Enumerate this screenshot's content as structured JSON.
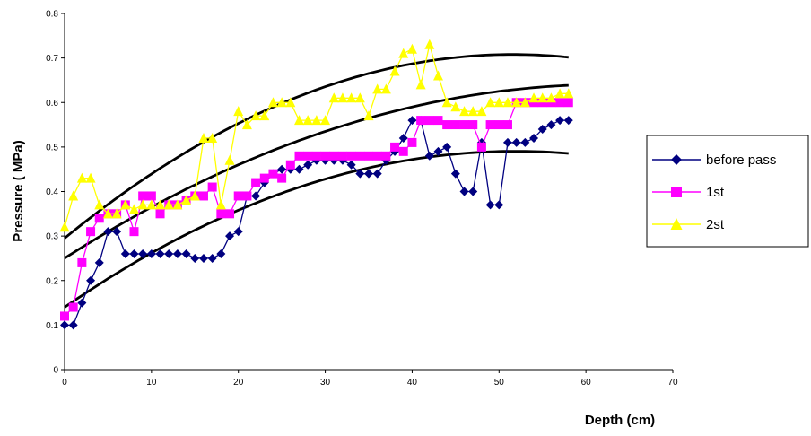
{
  "chart_data": {
    "type": "line",
    "title": "",
    "xlabel": "Depth (cm)",
    "ylabel": "Pressure ( MPa)",
    "xlim": [
      0,
      70
    ],
    "ylim": [
      0,
      0.8
    ],
    "xticks": [
      0,
      10,
      20,
      30,
      40,
      50,
      60,
      70
    ],
    "yticks": [
      0,
      0.1,
      0.2,
      0.3,
      0.4,
      0.5,
      0.6,
      0.7,
      0.8
    ],
    "grid": false,
    "legend_position": "right",
    "x": [
      0,
      1,
      2,
      3,
      4,
      5,
      6,
      7,
      8,
      9,
      10,
      11,
      12,
      13,
      14,
      15,
      16,
      17,
      18,
      19,
      20,
      21,
      22,
      23,
      24,
      25,
      26,
      27,
      28,
      29,
      30,
      31,
      32,
      33,
      34,
      35,
      36,
      37,
      38,
      39,
      40,
      41,
      42,
      43,
      44,
      45,
      46,
      47,
      48,
      49,
      50,
      51,
      52,
      53,
      54,
      55,
      56,
      57,
      58
    ],
    "series": [
      {
        "name": "before pass",
        "color": "#000080",
        "marker": "diamond",
        "values": [
          0.1,
          0.1,
          0.15,
          0.2,
          0.24,
          0.31,
          0.31,
          0.26,
          0.26,
          0.26,
          0.26,
          0.26,
          0.26,
          0.26,
          0.26,
          0.25,
          0.25,
          0.25,
          0.26,
          0.3,
          0.31,
          0.39,
          0.39,
          0.42,
          0.44,
          0.45,
          0.45,
          0.45,
          0.46,
          0.47,
          0.47,
          0.47,
          0.47,
          0.46,
          0.44,
          0.44,
          0.44,
          0.47,
          0.49,
          0.52,
          0.56,
          0.56,
          0.48,
          0.49,
          0.5,
          0.44,
          0.4,
          0.4,
          0.51,
          0.37,
          0.37,
          0.51,
          0.51,
          0.51,
          0.52,
          0.54,
          0.55,
          0.56,
          0.56
        ]
      },
      {
        "name": "1st",
        "color": "#ff00ff",
        "marker": "square",
        "values": [
          0.12,
          0.14,
          0.24,
          0.31,
          0.34,
          0.35,
          0.35,
          0.37,
          0.31,
          0.39,
          0.39,
          0.35,
          0.37,
          0.37,
          0.38,
          0.39,
          0.39,
          0.41,
          0.35,
          0.35,
          0.39,
          0.39,
          0.42,
          0.43,
          0.44,
          0.43,
          0.46,
          0.48,
          0.48,
          0.48,
          0.48,
          0.48,
          0.48,
          0.48,
          0.48,
          0.48,
          0.48,
          0.48,
          0.5,
          0.49,
          0.51,
          0.56,
          0.56,
          0.56,
          0.55,
          0.55,
          0.55,
          0.55,
          0.5,
          0.55,
          0.55,
          0.55,
          0.6,
          0.6,
          0.6,
          0.6,
          0.6,
          0.6,
          0.6
        ]
      },
      {
        "name": "2st",
        "color": "#ffff00",
        "marker": "triangle",
        "values": [
          0.32,
          0.39,
          0.43,
          0.43,
          0.37,
          0.35,
          0.35,
          0.37,
          0.36,
          0.37,
          0.37,
          0.37,
          0.37,
          0.37,
          0.38,
          0.39,
          0.52,
          0.52,
          0.37,
          0.47,
          0.58,
          0.55,
          0.57,
          0.57,
          0.6,
          0.6,
          0.6,
          0.56,
          0.56,
          0.56,
          0.56,
          0.61,
          0.61,
          0.61,
          0.61,
          0.57,
          0.63,
          0.63,
          0.67,
          0.71,
          0.72,
          0.64,
          0.73,
          0.66,
          0.6,
          0.59,
          0.58,
          0.58,
          0.58,
          0.6,
          0.6,
          0.6,
          0.6,
          0.6,
          0.61,
          0.61,
          0.61,
          0.62,
          0.62
        ]
      }
    ],
    "trendlines": [
      {
        "color": "#000000",
        "x_range": [
          0,
          58
        ],
        "quadratic": [
          0.295,
          0.016,
          -0.000155
        ]
      },
      {
        "color": "#000000",
        "x_range": [
          0,
          58
        ],
        "quadratic": [
          0.25,
          0.0125,
          -0.0001
        ]
      },
      {
        "color": "#000000",
        "x_range": [
          0,
          58
        ],
        "quadratic": [
          0.14,
          0.0135,
          -0.00013
        ]
      }
    ]
  }
}
